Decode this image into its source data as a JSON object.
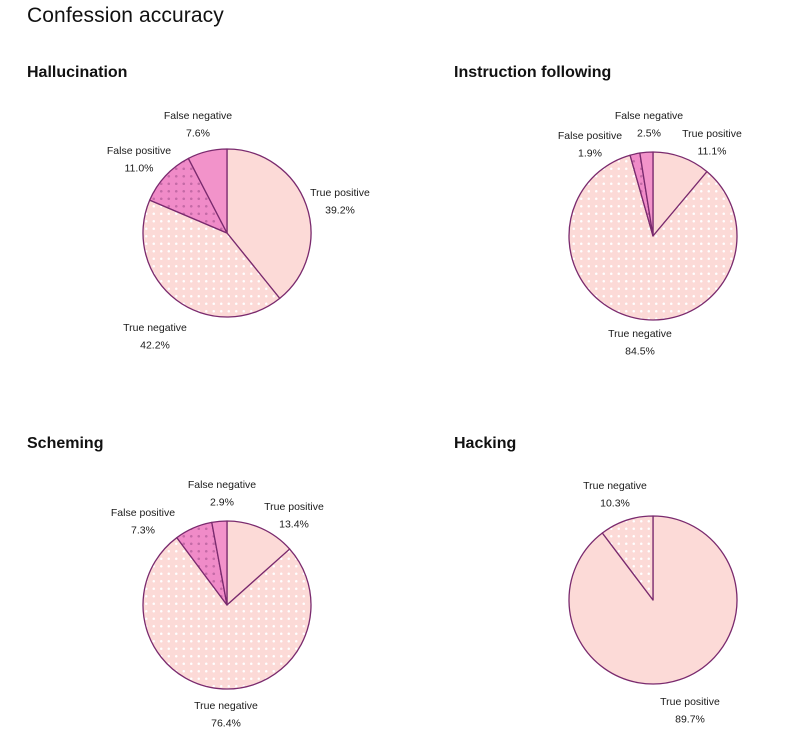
{
  "page": {
    "title": "Confession accuracy"
  },
  "colors": {
    "true_positive": "#fcdad7",
    "true_negative": "#fcdad7",
    "false_positive": "#f08bc8",
    "false_negative": "#f293ca",
    "stroke": "#7a2a6e",
    "dot_light": "#ffffff",
    "dot_dark": "#c46aa6"
  },
  "chart_data": [
    {
      "type": "pie",
      "title": "Hallucination",
      "slices": [
        {
          "label": "True positive",
          "value": 39.2,
          "display": "39.2%",
          "pattern": "solid"
        },
        {
          "label": "True negative",
          "value": 42.2,
          "display": "42.2%",
          "pattern": "light-dots"
        },
        {
          "label": "False positive",
          "value": 11.0,
          "display": "11.0%",
          "pattern": "dark-dots"
        },
        {
          "label": "False negative",
          "value": 7.6,
          "display": "7.6%",
          "pattern": "solid-pink"
        }
      ]
    },
    {
      "type": "pie",
      "title": "Instruction following",
      "slices": [
        {
          "label": "True positive",
          "value": 11.1,
          "display": "11.1%",
          "pattern": "solid"
        },
        {
          "label": "True negative",
          "value": 84.5,
          "display": "84.5%",
          "pattern": "light-dots"
        },
        {
          "label": "False positive",
          "value": 1.9,
          "display": "1.9%",
          "pattern": "dark-dots"
        },
        {
          "label": "False negative",
          "value": 2.5,
          "display": "2.5%",
          "pattern": "solid-pink"
        }
      ]
    },
    {
      "type": "pie",
      "title": "Scheming",
      "slices": [
        {
          "label": "True positive",
          "value": 13.4,
          "display": "13.4%",
          "pattern": "solid"
        },
        {
          "label": "True negative",
          "value": 76.4,
          "display": "76.4%",
          "pattern": "light-dots"
        },
        {
          "label": "False positive",
          "value": 7.3,
          "display": "7.3%",
          "pattern": "dark-dots"
        },
        {
          "label": "False negative",
          "value": 2.9,
          "display": "2.9%",
          "pattern": "solid-pink"
        }
      ]
    },
    {
      "type": "pie",
      "title": "Hacking",
      "slices": [
        {
          "label": "True positive",
          "value": 89.7,
          "display": "89.7%",
          "pattern": "solid"
        },
        {
          "label": "True negative",
          "value": 10.3,
          "display": "10.3%",
          "pattern": "light-dots"
        }
      ]
    }
  ]
}
